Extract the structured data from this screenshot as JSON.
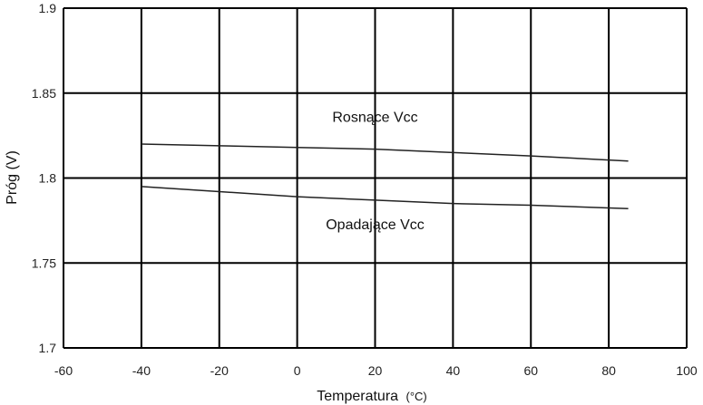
{
  "chart_data": {
    "type": "line",
    "xlabel": "Temperatura",
    "xlabel_unit": "(°C)",
    "ylabel": "Próg (V)",
    "xlim": [
      -60,
      100
    ],
    "ylim": [
      1.7,
      1.9
    ],
    "x_ticks": [
      -60,
      -40,
      -20,
      0,
      20,
      40,
      60,
      80,
      100
    ],
    "y_ticks": [
      1.7,
      1.75,
      1.8,
      1.85,
      1.9
    ],
    "y_tick_labels": [
      "1.7",
      "1.75",
      "1.8",
      "1.85",
      "1.9"
    ],
    "grid": true,
    "series": [
      {
        "name": "Rosnące Vcc",
        "x": [
          -40,
          -20,
          0,
          20,
          40,
          60,
          85
        ],
        "y": [
          1.82,
          1.819,
          1.818,
          1.817,
          1.815,
          1.813,
          1.81
        ],
        "label_at": [
          20,
          1.833
        ]
      },
      {
        "name": "Opadające Vcc",
        "x": [
          -40,
          -20,
          0,
          20,
          40,
          60,
          85
        ],
        "y": [
          1.795,
          1.792,
          1.789,
          1.787,
          1.785,
          1.784,
          1.782
        ],
        "label_at": [
          20,
          1.77
        ]
      }
    ]
  }
}
